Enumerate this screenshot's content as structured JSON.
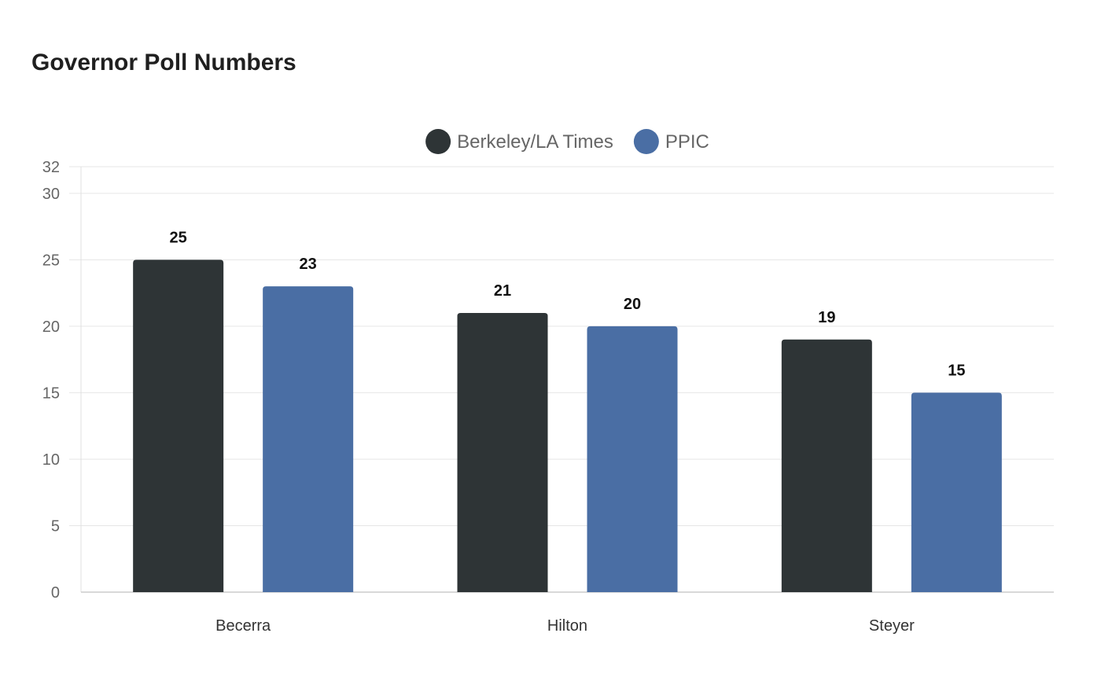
{
  "chart_data": {
    "type": "bar",
    "title": "Governor Poll Numbers",
    "categories": [
      "Becerra",
      "Hilton",
      "Steyer"
    ],
    "series": [
      {
        "name": "Berkeley/LA Times",
        "color": "#2e3436",
        "values": [
          25,
          21,
          19
        ]
      },
      {
        "name": "PPIC",
        "color": "#4a6ea4",
        "values": [
          23,
          20,
          15
        ]
      }
    ],
    "ylim": [
      0,
      32
    ],
    "yticks": [
      0,
      5,
      10,
      15,
      20,
      25,
      30,
      32
    ],
    "grid": true,
    "legend_position": "top-center",
    "data_labels": true
  }
}
